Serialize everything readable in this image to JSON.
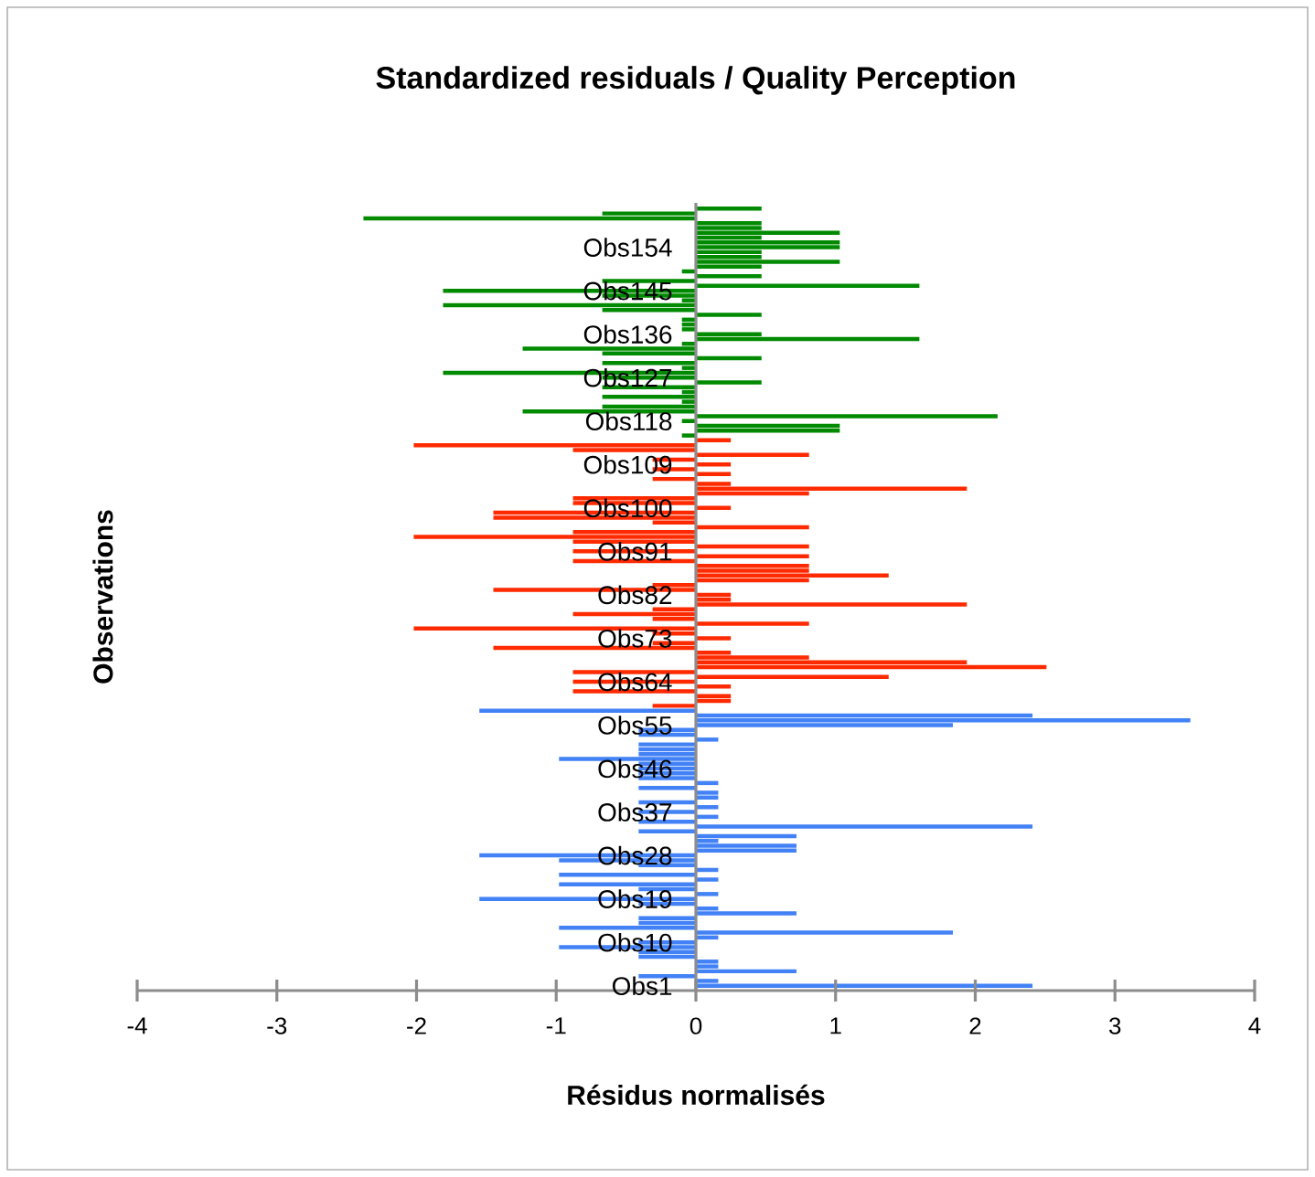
{
  "chart_data": {
    "type": "bar",
    "orientation": "horizontal",
    "title": "Standardized residuals / Quality Perception",
    "xlabel": "Résidus normalisés",
    "ylabel": "Observations",
    "categories": [
      null,
      null,
      null,
      null,
      null,
      null,
      null,
      null,
      "Obs154",
      null,
      null,
      null,
      null,
      null,
      null,
      null,
      null,
      "Obs145",
      null,
      null,
      null,
      null,
      null,
      null,
      null,
      null,
      "Obs136",
      null,
      null,
      null,
      null,
      null,
      null,
      null,
      null,
      "Obs127",
      null,
      null,
      null,
      null,
      null,
      null,
      null,
      null,
      "Obs118",
      null,
      null,
      null,
      null,
      null,
      null,
      null,
      null,
      "Obs109",
      null,
      null,
      null,
      null,
      null,
      null,
      null,
      null,
      "Obs100",
      null,
      null,
      null,
      null,
      null,
      null,
      null,
      null,
      "Obs91",
      null,
      null,
      null,
      null,
      null,
      null,
      null,
      null,
      "Obs82",
      null,
      null,
      null,
      null,
      null,
      null,
      null,
      null,
      "Obs73",
      null,
      null,
      null,
      null,
      null,
      null,
      null,
      null,
      "Obs64",
      null,
      null,
      null,
      null,
      null,
      null,
      null,
      null,
      "Obs55",
      null,
      null,
      null,
      null,
      null,
      null,
      null,
      null,
      "Obs46",
      null,
      null,
      null,
      null,
      null,
      null,
      null,
      null,
      "Obs37",
      null,
      null,
      null,
      null,
      null,
      null,
      null,
      null,
      "Obs28",
      null,
      null,
      null,
      null,
      null,
      null,
      null,
      null,
      "Obs19",
      null,
      null,
      null,
      null,
      null,
      null,
      null,
      null,
      "Obs10",
      null,
      null,
      null,
      null,
      null,
      null,
      null,
      null,
      "Obs1"
    ],
    "values": [
      0.47,
      -0.67,
      -2.38,
      0.47,
      0.47,
      1.03,
      0.47,
      1.03,
      1.03,
      0.47,
      0.47,
      1.03,
      0.47,
      -0.1,
      0.47,
      -0.67,
      1.6,
      -1.81,
      -0.67,
      -0.1,
      -1.81,
      -0.67,
      0.47,
      -0.1,
      -0.1,
      -0.1,
      0.47,
      1.6,
      -0.1,
      -1.24,
      -0.67,
      0.47,
      -0.67,
      -0.1,
      -1.81,
      -0.67,
      0.47,
      -0.67,
      -0.1,
      -0.67,
      -0.1,
      -0.67,
      -1.24,
      2.16,
      -0.1,
      1.03,
      1.03,
      -0.1,
      0.25,
      -2.02,
      -0.88,
      0.81,
      -0.31,
      0.25,
      -0.31,
      0.25,
      -0.31,
      0.25,
      1.94,
      0.81,
      -0.88,
      -0.88,
      0.25,
      -1.45,
      -1.45,
      -0.31,
      0.81,
      -0.88,
      -2.02,
      -0.88,
      0.81,
      -0.88,
      0.81,
      -0.88,
      0.81,
      0.81,
      1.38,
      0.81,
      -0.31,
      -1.45,
      0.25,
      0.25,
      1.94,
      -0.31,
      -0.88,
      -0.31,
      0.81,
      -2.02,
      -0.31,
      0.25,
      -0.31,
      -1.45,
      0.25,
      0.81,
      1.94,
      2.51,
      -0.88,
      1.38,
      -0.88,
      0.25,
      -0.88,
      0.25,
      0.25,
      -0.31,
      -1.55,
      2.41,
      3.54,
      1.84,
      -0.41,
      -0.41,
      0.16,
      -0.41,
      -0.41,
      -0.41,
      -0.98,
      -0.41,
      -0.41,
      -0.41,
      -0.41,
      0.16,
      -0.41,
      0.16,
      0.16,
      -0.41,
      0.16,
      -0.41,
      0.16,
      -0.41,
      2.41,
      -0.41,
      0.72,
      0.16,
      0.72,
      0.72,
      -1.55,
      -0.98,
      -0.41,
      0.16,
      -0.98,
      0.16,
      -0.98,
      -0.41,
      0.16,
      -1.55,
      -0.41,
      0.16,
      0.72,
      -0.41,
      -0.41,
      -0.98,
      1.84,
      0.16,
      -0.41,
      -0.98,
      -0.41,
      -0.41,
      0.16,
      0.16,
      0.72,
      -0.41,
      0.16,
      2.41
    ],
    "colors": [
      "#008a00",
      "#008a00",
      "#008a00",
      "#008a00",
      "#008a00",
      "#008a00",
      "#008a00",
      "#008a00",
      "#008a00",
      "#008a00",
      "#008a00",
      "#008a00",
      "#008a00",
      "#008a00",
      "#008a00",
      "#008a00",
      "#008a00",
      "#008a00",
      "#008a00",
      "#008a00",
      "#008a00",
      "#008a00",
      "#008a00",
      "#008a00",
      "#008a00",
      "#008a00",
      "#008a00",
      "#008a00",
      "#008a00",
      "#008a00",
      "#008a00",
      "#008a00",
      "#008a00",
      "#008a00",
      "#008a00",
      "#008a00",
      "#008a00",
      "#008a00",
      "#008a00",
      "#008a00",
      "#008a00",
      "#008a00",
      "#008a00",
      "#008a00",
      "#008a00",
      "#008a00",
      "#008a00",
      "#008a00",
      "#ff2a00",
      "#ff2a00",
      "#ff2a00",
      "#ff2a00",
      "#ff2a00",
      "#ff2a00",
      "#ff2a00",
      "#ff2a00",
      "#ff2a00",
      "#ff2a00",
      "#ff2a00",
      "#ff2a00",
      "#ff2a00",
      "#ff2a00",
      "#ff2a00",
      "#ff2a00",
      "#ff2a00",
      "#ff2a00",
      "#ff2a00",
      "#ff2a00",
      "#ff2a00",
      "#ff2a00",
      "#ff2a00",
      "#ff2a00",
      "#ff2a00",
      "#ff2a00",
      "#ff2a00",
      "#ff2a00",
      "#ff2a00",
      "#ff2a00",
      "#ff2a00",
      "#ff2a00",
      "#ff2a00",
      "#ff2a00",
      "#ff2a00",
      "#ff2a00",
      "#ff2a00",
      "#ff2a00",
      "#ff2a00",
      "#ff2a00",
      "#ff2a00",
      "#ff2a00",
      "#ff2a00",
      "#ff2a00",
      "#ff2a00",
      "#ff2a00",
      "#ff2a00",
      "#ff2a00",
      "#ff2a00",
      "#ff2a00",
      "#ff2a00",
      "#ff2a00",
      "#ff2a00",
      "#ff2a00",
      "#ff2a00",
      "#ff2a00",
      "#4282f6",
      "#4282f6",
      "#4282f6",
      "#4282f6",
      "#4282f6",
      "#4282f6",
      "#4282f6",
      "#4282f6",
      "#4282f6",
      "#4282f6",
      "#4282f6",
      "#4282f6",
      "#4282f6",
      "#4282f6",
      "#4282f6",
      "#4282f6",
      "#4282f6",
      "#4282f6",
      "#4282f6",
      "#4282f6",
      "#4282f6",
      "#4282f6",
      "#4282f6",
      "#4282f6",
      "#4282f6",
      "#4282f6",
      "#4282f6",
      "#4282f6",
      "#4282f6",
      "#4282f6",
      "#4282f6",
      "#4282f6",
      "#4282f6",
      "#4282f6",
      "#4282f6",
      "#4282f6",
      "#4282f6",
      "#4282f6",
      "#4282f6",
      "#4282f6",
      "#4282f6",
      "#4282f6",
      "#4282f6",
      "#4282f6",
      "#4282f6",
      "#4282f6",
      "#4282f6",
      "#4282f6",
      "#4282f6",
      "#4282f6",
      "#4282f6",
      "#4282f6",
      "#4282f6",
      "#4282f6",
      "#4282f6",
      "#4282f6",
      "#4282f6",
      "#4282f6"
    ],
    "xlim": [
      -4,
      4
    ],
    "xticks": [
      -4,
      -3,
      -2,
      -1,
      0,
      1,
      2,
      3,
      4
    ]
  }
}
